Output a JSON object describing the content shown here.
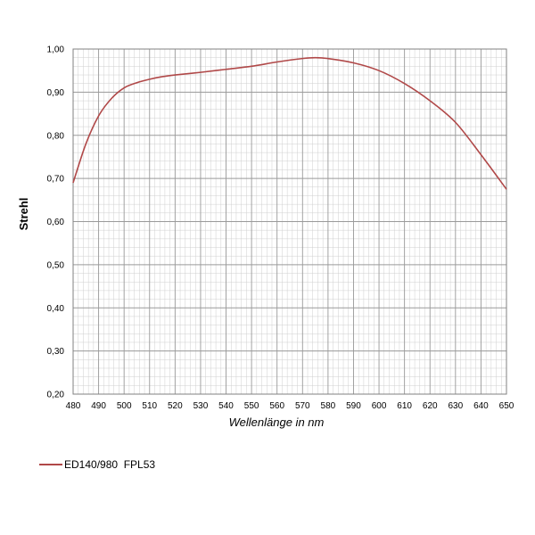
{
  "chart_data": {
    "type": "line",
    "xlabel": "Wellenlänge in nm",
    "ylabel": "Strehl",
    "xlim": [
      480,
      650
    ],
    "ylim": [
      0.2,
      1.0
    ],
    "x_ticks": [
      "480",
      "490",
      "500",
      "510",
      "520",
      "530",
      "540",
      "550",
      "560",
      "570",
      "580",
      "590",
      "600",
      "610",
      "620",
      "630",
      "640",
      "650"
    ],
    "y_ticks": [
      "0,20",
      "0,30",
      "0,40",
      "0,50",
      "0,60",
      "0,70",
      "0,80",
      "0,90",
      "1,00"
    ],
    "grid": true,
    "legend_position": "bottom-left",
    "series": [
      {
        "name": "ED140/980  FPL53",
        "color": "#b04848",
        "x": [
          480,
          485,
          490,
          495,
          500,
          505,
          510,
          515,
          520,
          530,
          540,
          550,
          560,
          570,
          575,
          580,
          590,
          600,
          610,
          620,
          630,
          640,
          650
        ],
        "y": [
          0.69,
          0.78,
          0.845,
          0.885,
          0.91,
          0.922,
          0.93,
          0.936,
          0.94,
          0.946,
          0.953,
          0.96,
          0.97,
          0.978,
          0.98,
          0.978,
          0.968,
          0.95,
          0.92,
          0.88,
          0.83,
          0.755,
          0.675
        ]
      }
    ]
  }
}
